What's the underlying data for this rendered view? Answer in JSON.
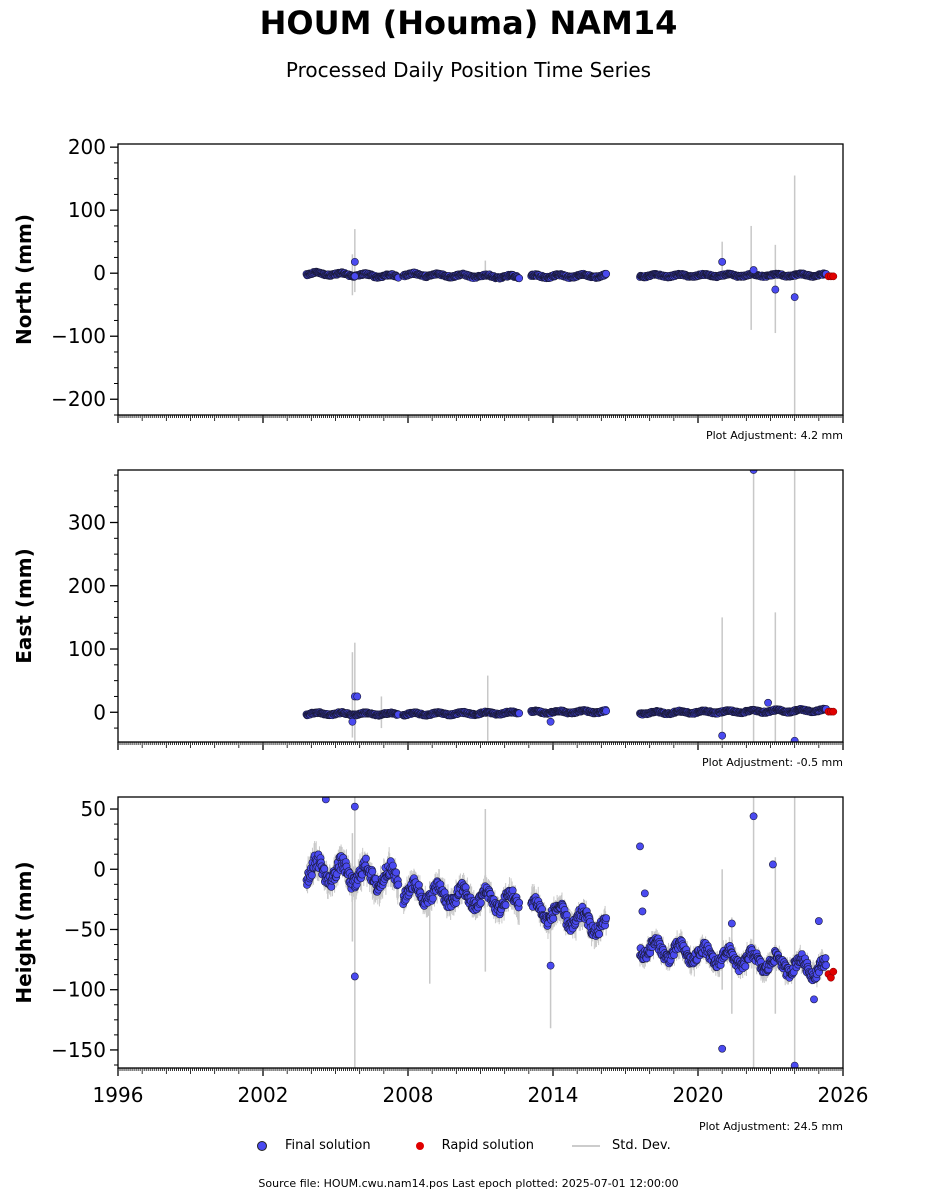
{
  "title": "HOUM (Houma) NAM14",
  "subtitle": "Processed Daily Position Time Series",
  "footer": "Source file: HOUM.cwu.nam14.pos  Last epoch plotted: 2025-07-01 12:00:00",
  "legend": [
    {
      "label": "Final solution",
      "color": "#4a4af0",
      "kind": "dot"
    },
    {
      "label": "Rapid solution",
      "color": "#e00000",
      "kind": "dot"
    },
    {
      "label": "Std. Dev.",
      "color": "#cccccc",
      "kind": "line"
    }
  ],
  "colors": {
    "final": "#4a4af0",
    "rapid": "#e00000",
    "stddev": "#c8c8c8"
  },
  "chart_data": [
    {
      "type": "scatter",
      "ylabel": "North (mm)",
      "xlim": [
        1996,
        2026
      ],
      "ylim": [
        -225,
        205
      ],
      "yticks": [
        200,
        100,
        0,
        -100,
        -200
      ],
      "xticks": [
        1996,
        2002,
        2008,
        2014,
        2020,
        2026
      ],
      "xtick_labels_shown": false,
      "adjustment": "Plot Adjustment: 4.2 mm",
      "segments": [
        {
          "x0": 2003.8,
          "x1": 2007.6,
          "y0": 0,
          "y1": -5,
          "amp": 3
        },
        {
          "x0": 2007.8,
          "x1": 2012.6,
          "y0": -2,
          "y1": -6,
          "amp": 3
        },
        {
          "x0": 2013.1,
          "x1": 2016.2,
          "y0": -5,
          "y1": -4,
          "amp": 3
        },
        {
          "x0": 2017.6,
          "x1": 2025.3,
          "y0": -4,
          "y1": -3,
          "amp": 2.5
        }
      ],
      "outliers": [
        [
          2005.8,
          18
        ],
        [
          2021.0,
          18
        ],
        [
          2023.2,
          -26
        ],
        [
          2024.0,
          -38
        ],
        [
          2022.3,
          5
        ],
        [
          2005.8,
          -5
        ]
      ],
      "errorbars": [
        [
          2005.8,
          -30,
          70
        ],
        [
          2005.7,
          -35,
          30
        ],
        [
          2021.0,
          0,
          50
        ],
        [
          2022.2,
          -90,
          75
        ],
        [
          2023.2,
          -95,
          45
        ],
        [
          2024.0,
          -225,
          155
        ],
        [
          2011.2,
          -10,
          20
        ]
      ],
      "rapid": [
        [
          2025.4,
          -5
        ],
        [
          2025.5,
          -5
        ],
        [
          2025.6,
          -5
        ]
      ]
    },
    {
      "type": "scatter",
      "ylabel": "East (mm)",
      "xlim": [
        1996,
        2026
      ],
      "ylim": [
        -47,
        383
      ],
      "yticks": [
        300,
        200,
        100,
        0
      ],
      "xticks": [
        1996,
        2002,
        2008,
        2014,
        2020,
        2026
      ],
      "xtick_labels_shown": false,
      "adjustment": "Plot Adjustment: -0.5 mm",
      "segments": [
        {
          "x0": 2003.8,
          "x1": 2007.6,
          "y0": -2,
          "y1": -3,
          "amp": 2.5
        },
        {
          "x0": 2007.8,
          "x1": 2012.6,
          "y0": -3,
          "y1": -1,
          "amp": 2.5
        },
        {
          "x0": 2013.1,
          "x1": 2016.2,
          "y0": 0,
          "y1": 1,
          "amp": 2.5
        },
        {
          "x0": 2017.6,
          "x1": 2025.3,
          "y0": -1,
          "y1": 3,
          "amp": 2.5
        }
      ],
      "outliers": [
        [
          2005.8,
          25
        ],
        [
          2005.7,
          -15
        ],
        [
          2005.9,
          25
        ],
        [
          2013.9,
          -15
        ],
        [
          2021.0,
          -37
        ],
        [
          2022.3,
          383
        ],
        [
          2022.9,
          15
        ],
        [
          2024.0,
          -45
        ]
      ],
      "errorbars": [
        [
          2005.8,
          -45,
          110
        ],
        [
          2005.7,
          -40,
          95
        ],
        [
          2006.9,
          -25,
          25
        ],
        [
          2011.3,
          -45,
          58
        ],
        [
          2021.0,
          -45,
          150
        ],
        [
          2022.3,
          -47,
          383
        ],
        [
          2023.2,
          -47,
          158
        ],
        [
          2024.0,
          -47,
          383
        ]
      ],
      "rapid": [
        [
          2025.4,
          1
        ],
        [
          2025.5,
          1
        ],
        [
          2025.6,
          1
        ]
      ]
    },
    {
      "type": "scatter",
      "ylabel": "Height (mm)",
      "xlim": [
        1996,
        2026
      ],
      "ylim": [
        -165,
        60
      ],
      "yticks": [
        50,
        0,
        -50,
        -100,
        -150
      ],
      "xticks": [
        1996,
        2002,
        2008,
        2014,
        2020,
        2026
      ],
      "xtick_labels": [
        "1996",
        "2002",
        "2008",
        "2014",
        "2020",
        "2026"
      ],
      "xtick_labels_shown": true,
      "adjustment": "Plot Adjustment: 24.5 mm",
      "segments": [
        {
          "x0": 2003.8,
          "x1": 2007.6,
          "y0": 0,
          "y1": -8,
          "amp": 12
        },
        {
          "x0": 2007.8,
          "x1": 2012.6,
          "y0": -18,
          "y1": -28,
          "amp": 10
        },
        {
          "x0": 2013.1,
          "x1": 2016.2,
          "y0": -32,
          "y1": -48,
          "amp": 10
        },
        {
          "x0": 2017.6,
          "x1": 2025.3,
          "y0": -65,
          "y1": -83,
          "amp": 9
        }
      ],
      "outliers": [
        [
          2004.6,
          58
        ],
        [
          2005.8,
          52
        ],
        [
          2005.8,
          -89
        ],
        [
          2013.9,
          -80
        ],
        [
          2017.6,
          19
        ],
        [
          2017.8,
          -20
        ],
        [
          2017.7,
          -35
        ],
        [
          2021.0,
          -149
        ],
        [
          2021.4,
          -45
        ],
        [
          2022.3,
          44
        ],
        [
          2023.1,
          4
        ],
        [
          2024.0,
          -163
        ],
        [
          2024.8,
          -108
        ],
        [
          2025.0,
          -43
        ]
      ],
      "errorbars": [
        [
          2005.8,
          -165,
          60
        ],
        [
          2005.7,
          -60,
          30
        ],
        [
          2008.9,
          -95,
          -10
        ],
        [
          2011.2,
          -85,
          50
        ],
        [
          2013.9,
          -132,
          -40
        ],
        [
          2021.0,
          -100,
          0
        ],
        [
          2021.4,
          -120,
          -40
        ],
        [
          2022.3,
          -165,
          60
        ],
        [
          2023.2,
          -120,
          10
        ],
        [
          2024.0,
          -165,
          60
        ]
      ],
      "rapid": [
        [
          2025.4,
          -87
        ],
        [
          2025.5,
          -90
        ],
        [
          2025.6,
          -85
        ]
      ]
    }
  ]
}
